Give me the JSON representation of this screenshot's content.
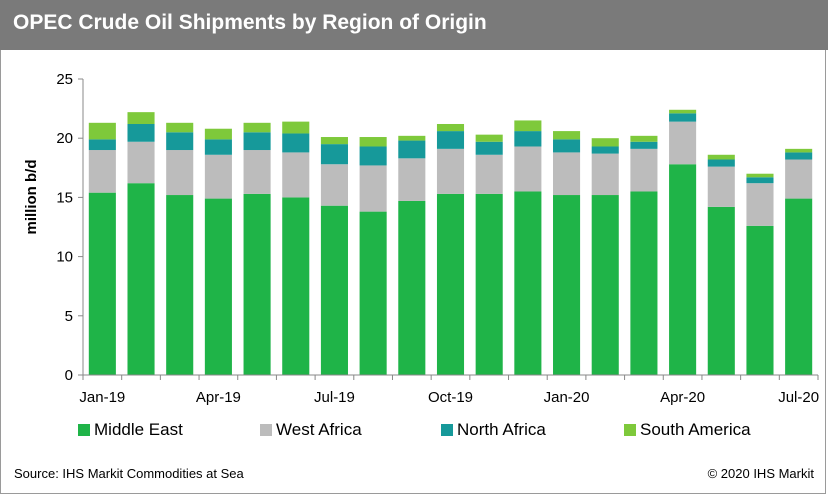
{
  "header": {
    "title": "OPEC Crude Oil Shipments by Region of Origin"
  },
  "footer": {
    "source": "Source: IHS Markit Commodities at Sea",
    "copyright": "© 2020 IHS Markit"
  },
  "colors": {
    "title_bar": "#7a7a7a",
    "middle_east": "#1fb448",
    "west_africa": "#bcbcbc",
    "north_africa": "#16999a",
    "south_america": "#7ec93b"
  },
  "chart_data": {
    "type": "bar",
    "stacked": true,
    "title": "OPEC Crude Oil Shipments by Region of Origin",
    "ylabel": "million b/d",
    "xlabel": "",
    "ylim": [
      0,
      25
    ],
    "yticks": [
      0,
      5,
      10,
      15,
      20,
      25
    ],
    "grid": false,
    "legend_position": "bottom",
    "categories": [
      "Jan-19",
      "Feb-19",
      "Mar-19",
      "Apr-19",
      "May-19",
      "Jun-19",
      "Jul-19",
      "Aug-19",
      "Sep-19",
      "Oct-19",
      "Nov-19",
      "Dec-19",
      "Jan-20",
      "Feb-20",
      "Mar-20",
      "Apr-20",
      "May-20",
      "Jun-20",
      "Jul-20"
    ],
    "xtick_labels": [
      {
        "index": 0,
        "label": "Jan-19"
      },
      {
        "index": 3,
        "label": "Apr-19"
      },
      {
        "index": 6,
        "label": "Jul-19"
      },
      {
        "index": 9,
        "label": "Oct-19"
      },
      {
        "index": 12,
        "label": "Jan-20"
      },
      {
        "index": 15,
        "label": "Apr-20"
      },
      {
        "index": 18,
        "label": "Jul-20"
      }
    ],
    "series": [
      {
        "name": "Middle East",
        "color": "#1fb448",
        "values": [
          15.4,
          16.2,
          15.2,
          14.9,
          15.3,
          15.0,
          14.3,
          13.8,
          14.7,
          15.3,
          15.3,
          15.5,
          15.2,
          15.2,
          15.5,
          17.8,
          14.2,
          12.6,
          14.9
        ]
      },
      {
        "name": "West Africa",
        "color": "#bcbcbc",
        "values": [
          3.6,
          3.5,
          3.8,
          3.7,
          3.7,
          3.8,
          3.5,
          3.9,
          3.6,
          3.8,
          3.3,
          3.8,
          3.6,
          3.5,
          3.6,
          3.6,
          3.4,
          3.6,
          3.3
        ]
      },
      {
        "name": "North Africa",
        "color": "#16999a",
        "values": [
          0.9,
          1.5,
          1.5,
          1.3,
          1.5,
          1.6,
          1.7,
          1.6,
          1.5,
          1.5,
          1.1,
          1.3,
          1.1,
          0.6,
          0.6,
          0.7,
          0.6,
          0.5,
          0.6
        ]
      },
      {
        "name": "South America",
        "color": "#7ec93b",
        "values": [
          1.4,
          1.0,
          0.8,
          0.9,
          0.8,
          1.0,
          0.6,
          0.8,
          0.4,
          0.6,
          0.6,
          0.9,
          0.7,
          0.7,
          0.5,
          0.3,
          0.4,
          0.3,
          0.3
        ]
      }
    ]
  }
}
